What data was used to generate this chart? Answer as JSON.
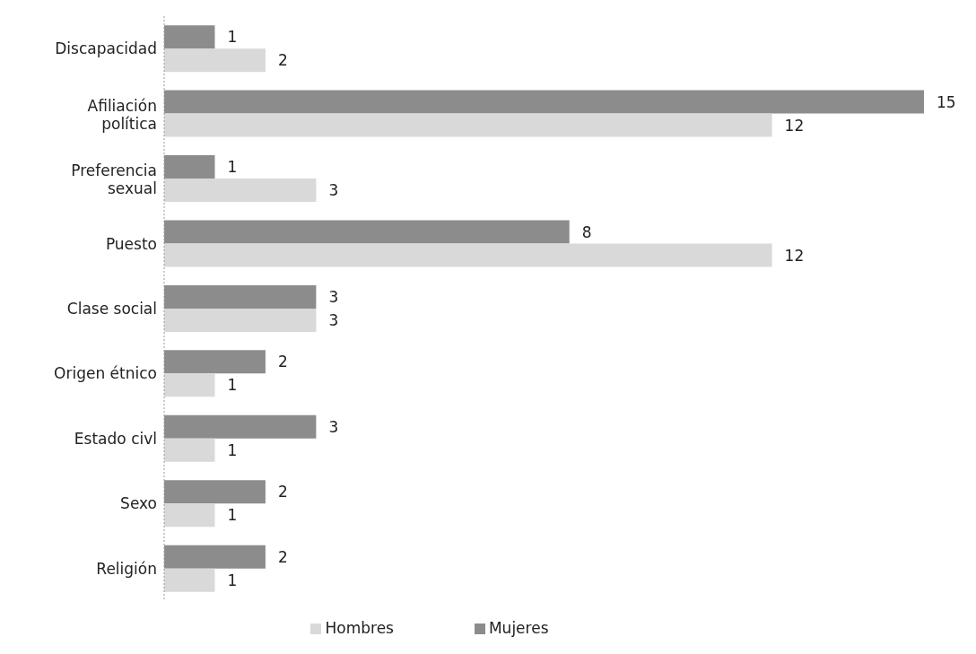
{
  "chart_data": {
    "type": "bar",
    "orientation": "horizontal",
    "categories": [
      "Discapacidad",
      "Afiliación política",
      "Preferencia sexual",
      "Puesto",
      "Clase social",
      "Origen étnico",
      "Estado civl",
      "Sexo",
      "Religión"
    ],
    "series": [
      {
        "name": "Mujeres",
        "color": "#8c8c8c",
        "values": [
          1,
          15,
          1,
          8,
          3,
          2,
          3,
          2,
          2
        ]
      },
      {
        "name": "Hombres",
        "color": "#d9d9d9",
        "values": [
          2,
          12,
          3,
          12,
          3,
          1,
          1,
          1,
          1
        ]
      }
    ],
    "data_labels": true,
    "legend": "bottom",
    "grid": false
  }
}
